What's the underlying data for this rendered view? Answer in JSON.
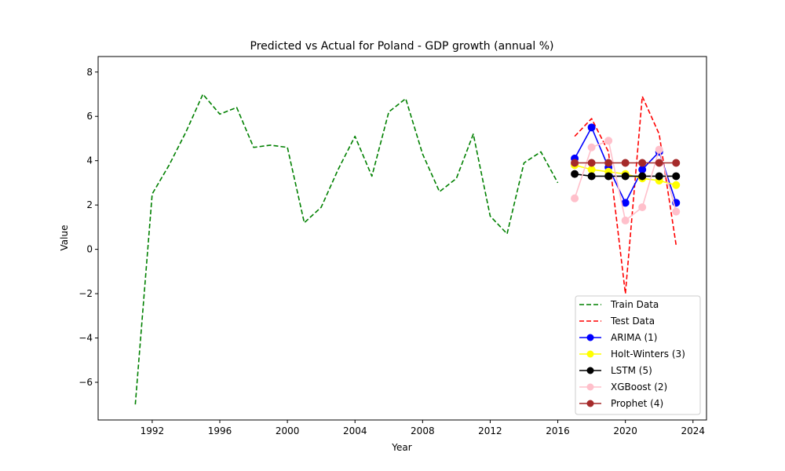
{
  "chart_data": {
    "type": "line",
    "title": "Predicted vs Actual for Poland - GDP growth (annual %)",
    "xlabel": "Year",
    "ylabel": "Value",
    "xlim": [
      1988.8,
      2024.8
    ],
    "ylim": [
      -7.7,
      8.7
    ],
    "x_ticks": [
      1992,
      1996,
      2000,
      2004,
      2008,
      2012,
      2016,
      2020,
      2024
    ],
    "y_ticks": [
      -6,
      -4,
      -2,
      0,
      2,
      4,
      6,
      8
    ],
    "grid": false,
    "legend_position": "lower-right",
    "series": [
      {
        "name": "Train Data",
        "color": "#008000",
        "style": "dashed",
        "marker": "none",
        "x": [
          1991,
          1992,
          1993,
          1994,
          1995,
          1996,
          1997,
          1998,
          1999,
          2000,
          2001,
          2002,
          2003,
          2004,
          2005,
          2006,
          2007,
          2008,
          2009,
          2010,
          2011,
          2012,
          2013,
          2014,
          2015,
          2016
        ],
        "y": [
          -7.0,
          2.5,
          3.8,
          5.3,
          7.0,
          6.1,
          6.4,
          4.6,
          4.7,
          4.6,
          1.2,
          1.9,
          3.6,
          5.1,
          3.3,
          6.2,
          6.8,
          4.3,
          2.6,
          3.2,
          5.2,
          1.5,
          0.7,
          3.9,
          4.4,
          3.0
        ]
      },
      {
        "name": "Test Data",
        "color": "#ff0000",
        "style": "dashed",
        "marker": "none",
        "x": [
          2017,
          2018,
          2019,
          2020,
          2021,
          2022,
          2023
        ],
        "y": [
          5.1,
          5.9,
          4.4,
          -2.0,
          6.9,
          5.2,
          0.2
        ]
      },
      {
        "name": "ARIMA (1)",
        "color": "#0000ff",
        "style": "solid",
        "marker": "circle",
        "x": [
          2017,
          2018,
          2019,
          2020,
          2021,
          2022,
          2023
        ],
        "y": [
          4.1,
          5.5,
          3.7,
          2.1,
          3.6,
          4.4,
          2.1
        ]
      },
      {
        "name": "Holt-Winters (3)",
        "color": "#ffff00",
        "style": "solid",
        "marker": "circle",
        "x": [
          2017,
          2018,
          2019,
          2020,
          2021,
          2022,
          2023
        ],
        "y": [
          3.8,
          3.6,
          3.5,
          3.4,
          3.2,
          3.1,
          2.9
        ]
      },
      {
        "name": "LSTM (5)",
        "color": "#000000",
        "style": "solid",
        "marker": "circle",
        "x": [
          2017,
          2018,
          2019,
          2020,
          2021,
          2022,
          2023
        ],
        "y": [
          3.4,
          3.3,
          3.3,
          3.3,
          3.3,
          3.3,
          3.3
        ]
      },
      {
        "name": "XGBoost (2)",
        "color": "#ffc0cb",
        "style": "solid",
        "marker": "circle",
        "x": [
          2017,
          2018,
          2019,
          2020,
          2021,
          2022,
          2023
        ],
        "y": [
          2.3,
          4.6,
          4.9,
          1.3,
          1.9,
          4.5,
          1.7
        ]
      },
      {
        "name": "Prophet (4)",
        "color": "#a52a2a",
        "style": "solid",
        "marker": "circle",
        "x": [
          2017,
          2018,
          2019,
          2020,
          2021,
          2022,
          2023
        ],
        "y": [
          3.9,
          3.9,
          3.9,
          3.9,
          3.9,
          3.9,
          3.9
        ]
      }
    ]
  }
}
